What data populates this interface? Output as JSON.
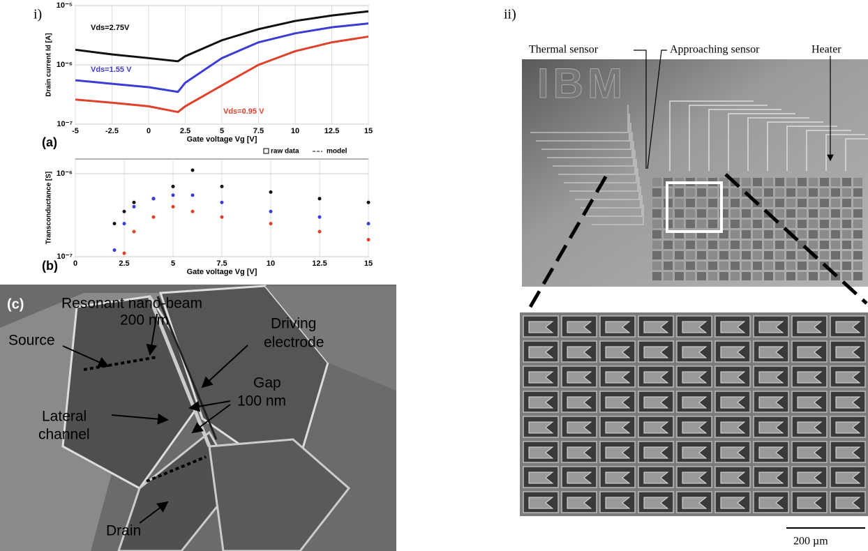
{
  "panels": {
    "i": "i)",
    "ii": "ii)",
    "c": "(c)"
  },
  "chart_data": [
    {
      "type": "line",
      "panel_label": "(a)",
      "xlabel": "Gate voltage Vg [V]",
      "ylabel": "Drain current Id [A]",
      "log_y": true,
      "grid": true,
      "x": [
        -5,
        -2.5,
        0,
        2,
        2.5,
        5,
        7.5,
        10,
        12.5,
        15
      ],
      "xlim": [
        -5,
        15
      ],
      "xticks": [
        -5,
        -2.5,
        0,
        2.5,
        5,
        7.5,
        10,
        12.5,
        15
      ],
      "ylim": [
        1e-07,
        1e-05
      ],
      "yticks": [
        {
          "value": 1e-07,
          "label": "10⁻⁷"
        },
        {
          "value": 1e-06,
          "label": "10⁻⁶"
        },
        {
          "value": 1e-05,
          "label": "10⁻⁵"
        }
      ],
      "series": [
        {
          "name": "Vds=2.75V",
          "color": "#111111",
          "values": [
            1.8e-06,
            1.5e-06,
            1.3e-06,
            1.15e-06,
            1.4e-06,
            2.6e-06,
            4e-06,
            5.5e-06,
            6.8e-06,
            8e-06
          ]
        },
        {
          "name": "Vds=1.55 V",
          "color": "#3b3bd6",
          "values": [
            5.5e-07,
            4.8e-07,
            4.2e-07,
            3.5e-07,
            5e-07,
            1.3e-06,
            2.4e-06,
            3.4e-06,
            4.3e-06,
            5e-06
          ]
        },
        {
          "name": "Vds=0.95 V",
          "color": "#e0412a",
          "values": [
            2.6e-07,
            2.3e-07,
            2e-07,
            1.6e-07,
            2e-07,
            4.5e-07,
            1e-06,
            1.7e-06,
            2.4e-06,
            3e-06
          ]
        }
      ]
    },
    {
      "type": "scatter",
      "panel_label": "(b)",
      "xlabel": "Gate voltage Vg [V]",
      "ylabel": "Transconductance [S]",
      "log_y": true,
      "grid": true,
      "legend": [
        "raw data",
        "model"
      ],
      "legend_position": "top-right",
      "x": [
        2,
        2.5,
        3,
        4,
        5,
        6,
        7.5,
        10,
        12.5,
        15
      ],
      "xlim": [
        0,
        15
      ],
      "xticks": [
        0,
        2.5,
        5,
        7.5,
        10,
        12.5,
        15
      ],
      "ylim": [
        1e-07,
        1.5e-06
      ],
      "yticks": [
        {
          "value": 1e-07,
          "label": "10⁻⁷"
        },
        {
          "value": 1e-06,
          "label": "10⁻⁶"
        }
      ],
      "series": [
        {
          "color": "#111111",
          "values": [
            2.5e-07,
            3.5e-07,
            4.5e-07,
            5e-07,
            7e-07,
            1.1e-06,
            7e-07,
            6e-07,
            5e-07,
            4.5e-07
          ]
        },
        {
          "color": "#3b3bd6",
          "values": [
            1.2e-07,
            2.5e-07,
            4e-07,
            5e-07,
            5.5e-07,
            5.5e-07,
            4.5e-07,
            3.5e-07,
            3e-07,
            2.5e-07
          ]
        },
        {
          "color": "#e0412a",
          "values": [
            null,
            1.1e-07,
            2e-07,
            3e-07,
            4e-07,
            3.5e-07,
            3e-07,
            2.5e-07,
            2e-07,
            1.6e-07
          ]
        }
      ]
    }
  ],
  "sem": {
    "labels": [
      "Resonant nano-beam",
      "200 nm",
      "Source",
      "Driving",
      "electrode",
      "Gap",
      "100 nm",
      "Lateral",
      "channel",
      "Drain"
    ]
  },
  "chip": {
    "labels": [
      "Thermal sensor",
      "Approaching sensor",
      "Heater"
    ],
    "logo": "IBM",
    "scale_bar": "200 µm"
  }
}
